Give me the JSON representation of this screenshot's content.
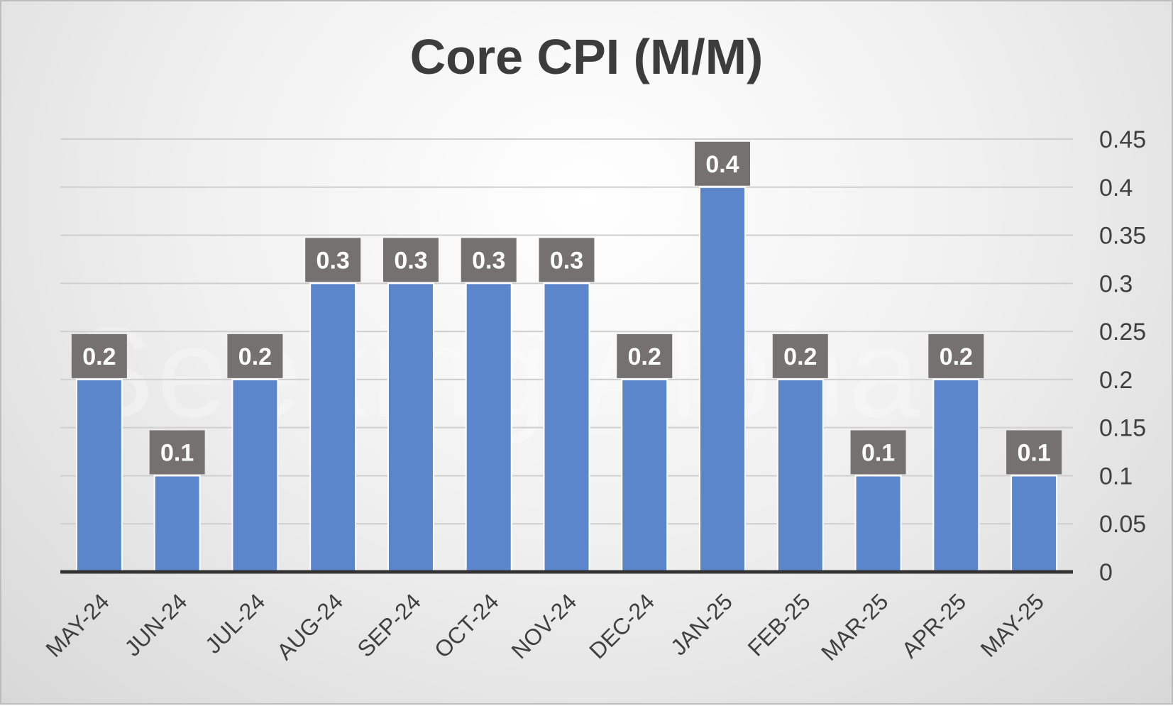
{
  "watermark": "Seeking Alpha",
  "chart_data": {
    "type": "bar",
    "title": "Core CPI (M/M)",
    "xlabel": "",
    "ylabel": "",
    "categories": [
      "MAY-24",
      "JUN-24",
      "JUL-24",
      "AUG-24",
      "SEP-24",
      "OCT-24",
      "NOV-24",
      "DEC-24",
      "JAN-25",
      "FEB-25",
      "MAR-25",
      "APR-25",
      "MAY-25"
    ],
    "values": [
      0.2,
      0.1,
      0.2,
      0.3,
      0.3,
      0.3,
      0.3,
      0.2,
      0.4,
      0.2,
      0.1,
      0.2,
      0.1
    ],
    "data_labels": [
      "0.2",
      "0.1",
      "0.2",
      "0.3",
      "0.3",
      "0.3",
      "0.3",
      "0.2",
      "0.4",
      "0.2",
      "0.1",
      "0.2",
      "0.1"
    ],
    "ylim": [
      0,
      0.45
    ],
    "yticks": [
      0,
      0.05,
      0.1,
      0.15,
      0.2,
      0.25,
      0.3,
      0.35,
      0.4,
      0.45
    ],
    "ytick_labels": [
      "0",
      "0.05",
      "0.1",
      "0.15",
      "0.2",
      "0.25",
      "0.3",
      "0.35",
      "0.4",
      "0.45"
    ],
    "yaxis_side": "right",
    "grid": true,
    "legend": "none",
    "colors": {
      "bar": "#5b86cc",
      "label_bg": "#767171",
      "label_text": "#ffffff",
      "grid": "#cfcfcf",
      "axis": "#333333",
      "tick_text": "#404040"
    }
  }
}
